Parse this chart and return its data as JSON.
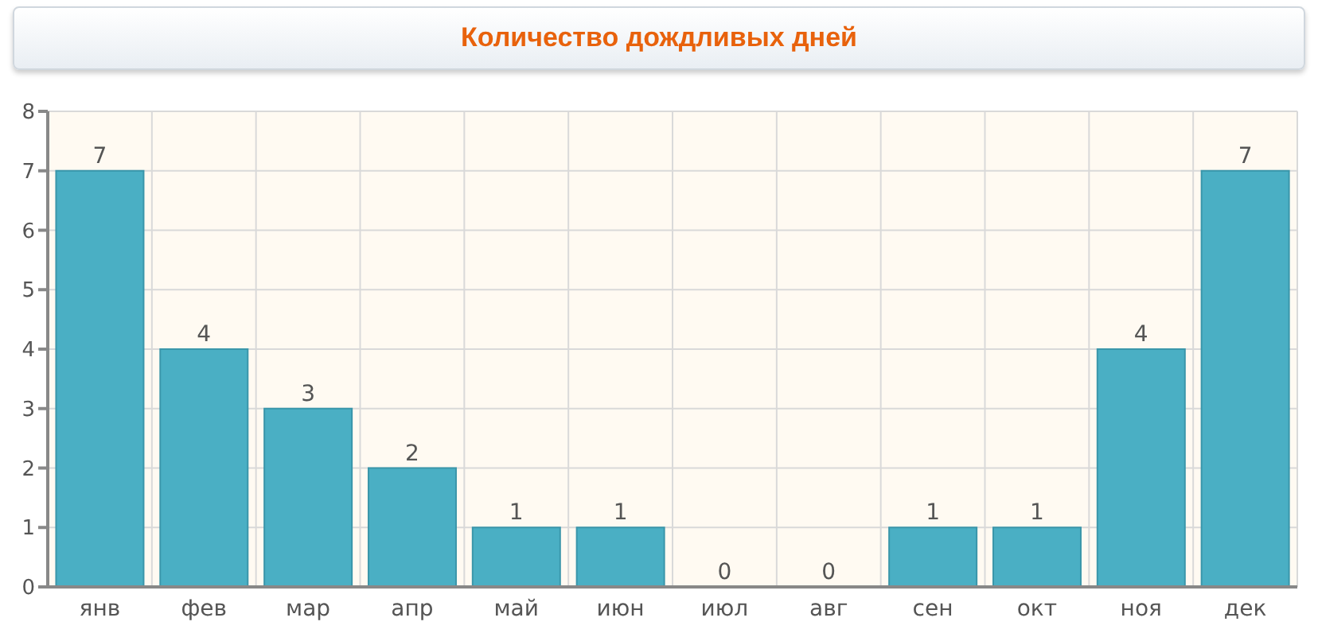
{
  "chart_data": {
    "type": "bar",
    "title": "Количество дождливых дней",
    "categories": [
      "янв",
      "фев",
      "мар",
      "апр",
      "май",
      "июн",
      "июл",
      "авг",
      "сен",
      "окт",
      "ноя",
      "дек"
    ],
    "values": [
      7,
      4,
      3,
      2,
      1,
      1,
      0,
      0,
      1,
      1,
      4,
      7
    ],
    "color": "#4aafc4",
    "ylim": [
      0,
      8
    ],
    "yticks": [
      0,
      1,
      2,
      3,
      4,
      5,
      6,
      7,
      8
    ],
    "grid": true,
    "data_labels": true
  }
}
